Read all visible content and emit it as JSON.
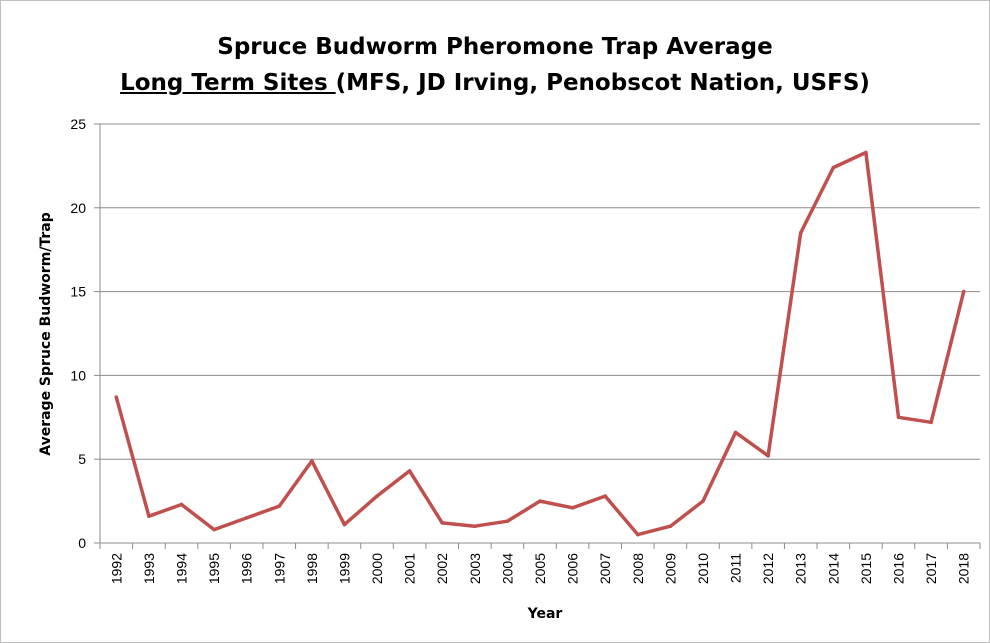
{
  "chart_data": {
    "type": "line",
    "title_line1": "Spruce Budworm Pheromone Trap Average",
    "title_line2_underlined": "Long Term Sites ",
    "title_line2_rest": "(MFS, JD Irving, Penobscot Nation, USFS)",
    "xlabel": "Year",
    "ylabel": "Average Spruce Budworm/Trap",
    "ylim": [
      0,
      25
    ],
    "yticks": [
      0,
      5,
      10,
      15,
      20,
      25
    ],
    "grid": "horizontal",
    "legend": "none",
    "line_color": "#c0504d",
    "x": [
      "1992",
      "1993",
      "1994",
      "1995",
      "1996",
      "1997",
      "1998",
      "1999",
      "2000",
      "2001",
      "2002",
      "2003",
      "2004",
      "2005",
      "2006",
      "2007",
      "2008",
      "2009",
      "2010",
      "2011",
      "2012",
      "2013",
      "2014",
      "2015",
      "2016",
      "2017",
      "2018"
    ],
    "values": [
      8.7,
      1.6,
      2.3,
      0.8,
      1.5,
      2.2,
      4.9,
      1.1,
      2.8,
      4.3,
      1.2,
      1.0,
      1.3,
      2.5,
      2.1,
      2.8,
      0.5,
      1.0,
      2.5,
      6.6,
      5.2,
      18.5,
      22.4,
      23.3,
      7.5,
      7.2,
      15.0
    ]
  }
}
